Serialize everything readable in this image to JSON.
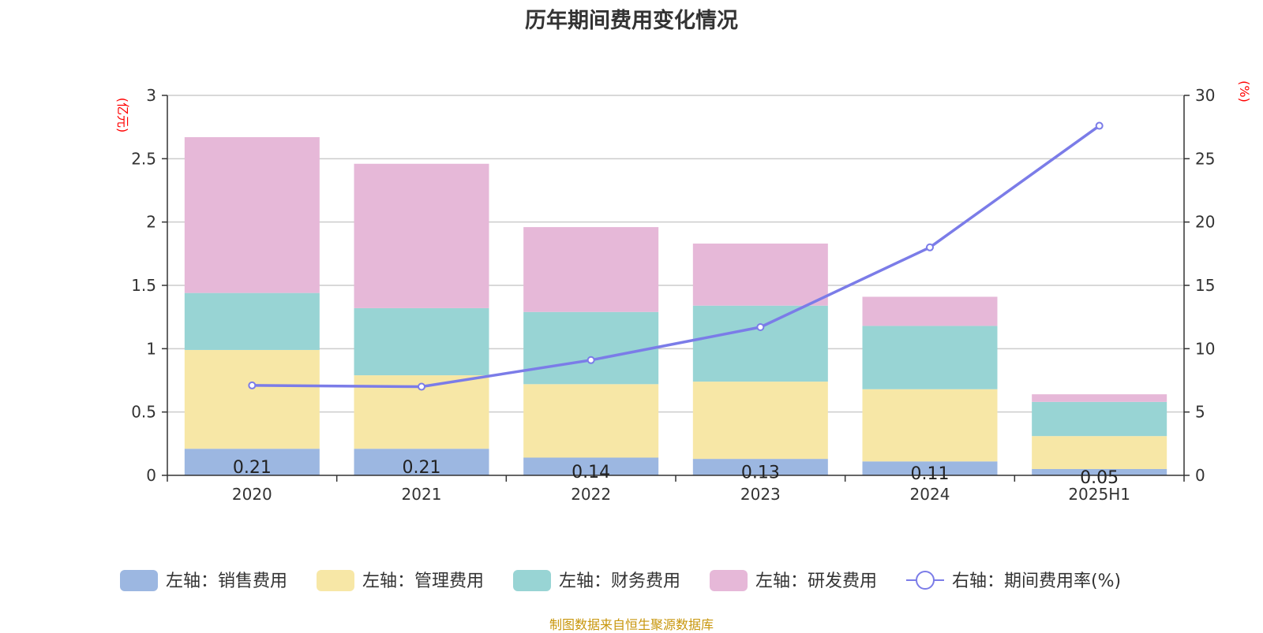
{
  "title": "历年期间费用变化情况",
  "source": "制图数据来自恒生聚源数据库",
  "colors": {
    "sales": "#9cb7e1",
    "admin": "#f7e7a6",
    "finance": "#98d4d4",
    "rd": "#e6b8d8",
    "line": "#7b7ce8",
    "unit": "#ff0000",
    "source": "#c8960c"
  },
  "chart_data": {
    "type": "bar",
    "stacked": true,
    "categories": [
      "2020",
      "2021",
      "2022",
      "2023",
      "2024",
      "2025H1"
    ],
    "left_axis": {
      "unit_label": "(亿元)",
      "ylim": [
        0,
        3
      ],
      "ticks": [
        "0",
        "0.5",
        "1",
        "1.5",
        "2",
        "2.5",
        "3"
      ]
    },
    "right_axis": {
      "unit_label": "(%)",
      "ylim": [
        0,
        30
      ],
      "ticks": [
        "0",
        "5",
        "10",
        "15",
        "20",
        "25",
        "30"
      ]
    },
    "series": [
      {
        "key": "sales",
        "name": "左轴：销售费用",
        "values": [
          0.21,
          0.21,
          0.14,
          0.13,
          0.11,
          0.05
        ],
        "labels": [
          "0.21",
          "0.21",
          "0.14",
          "0.13",
          "0.11",
          "0.05"
        ]
      },
      {
        "key": "admin",
        "name": "左轴：管理费用",
        "values": [
          0.78,
          0.58,
          0.58,
          0.61,
          0.57,
          0.26
        ]
      },
      {
        "key": "finance",
        "name": "左轴：财务费用",
        "values": [
          0.45,
          0.53,
          0.57,
          0.6,
          0.5,
          0.27
        ]
      },
      {
        "key": "rd",
        "name": "左轴：研发费用",
        "values": [
          1.23,
          1.14,
          0.67,
          0.49,
          0.23,
          0.06
        ]
      }
    ],
    "line_series": {
      "name": "右轴：期间费用率(%)",
      "values": [
        7.1,
        7.0,
        9.1,
        11.7,
        18.0,
        27.6
      ]
    },
    "grid": true,
    "legend_position": "bottom"
  }
}
